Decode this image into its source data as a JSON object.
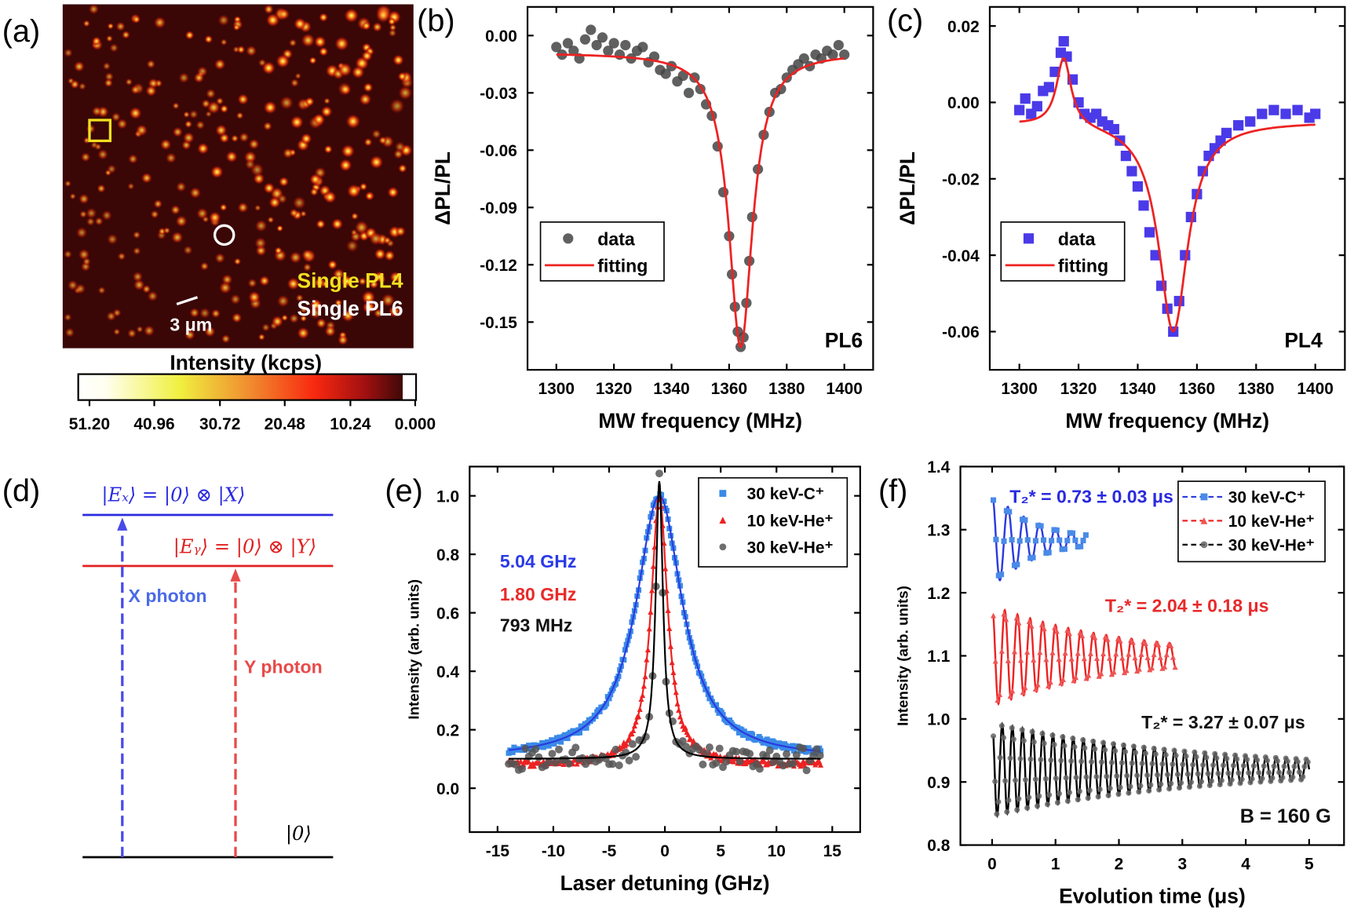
{
  "panels": {
    "a": {
      "label": "(a)",
      "legend_pl4": "Single PL4",
      "legend_pl6": "Single PL6",
      "scale_bar": "3 μm",
      "colorbar_title": "Intensity (kcps)",
      "colorbar_ticks": [
        "51.20",
        "40.96",
        "30.72",
        "20.48",
        "10.24",
        "0.000"
      ],
      "colors": {
        "pl4_marker": "#f0e020",
        "pl6_marker": "#ffffff"
      }
    },
    "b": {
      "label": "(b)"
    },
    "c": {
      "label": "(c)"
    },
    "d": {
      "label": "(d)",
      "level_ex": "|Eₓ⟩ = |0⟩ ⊗ |X⟩",
      "level_ey": "|Eᵧ⟩ = |0⟩ ⊗ |Y⟩",
      "ground": "|0⟩",
      "x_photon": "X photon",
      "y_photon": "Y photon",
      "colors": {
        "ex": "#2a2ae0",
        "ey": "#e02020",
        "ground": "#000000"
      }
    },
    "e": {
      "label": "(e)"
    },
    "f": {
      "label": "(f)"
    }
  },
  "chart_data": [
    {
      "panel": "b",
      "type": "scatter",
      "xlabel": "MW frequency (MHz)",
      "ylabel": "ΔPL/PL",
      "xlim": [
        1290,
        1410
      ],
      "ylim": [
        -0.175,
        0.015
      ],
      "xticks": [
        "1300",
        "1320",
        "1340",
        "1360",
        "1380",
        "1400"
      ],
      "yticks": [
        "0.00",
        "-0.03",
        "-0.06",
        "-0.09",
        "-0.12",
        "-0.15"
      ],
      "annotation": "PL6",
      "legend": [
        "data",
        "fitting"
      ],
      "legend_placement": "center-left",
      "series": [
        {
          "name": "data",
          "color": "#444444",
          "marker": "circle",
          "x": [
            1300,
            1302,
            1304,
            1306,
            1308,
            1310,
            1312,
            1314,
            1316,
            1318,
            1320,
            1322,
            1324,
            1326,
            1328,
            1330,
            1332,
            1334,
            1336,
            1338,
            1340,
            1342,
            1344,
            1346,
            1348,
            1350,
            1352,
            1354,
            1356,
            1358,
            1360,
            1361,
            1362,
            1363,
            1364,
            1365,
            1366,
            1367,
            1368,
            1370,
            1372,
            1374,
            1376,
            1378,
            1380,
            1382,
            1384,
            1386,
            1388,
            1390,
            1392,
            1394,
            1396,
            1398,
            1400
          ],
          "y": [
            -0.006,
            -0.01,
            -0.004,
            -0.008,
            -0.012,
            -0.002,
            0.003,
            -0.005,
            -0.001,
            -0.008,
            -0.004,
            -0.01,
            -0.005,
            -0.012,
            -0.008,
            -0.006,
            -0.014,
            -0.011,
            -0.018,
            -0.02,
            -0.016,
            -0.024,
            -0.021,
            -0.03,
            -0.022,
            -0.028,
            -0.036,
            -0.042,
            -0.058,
            -0.082,
            -0.105,
            -0.125,
            -0.142,
            -0.155,
            -0.163,
            -0.158,
            -0.14,
            -0.118,
            -0.095,
            -0.07,
            -0.052,
            -0.04,
            -0.03,
            -0.028,
            -0.022,
            -0.018,
            -0.015,
            -0.012,
            -0.016,
            -0.01,
            -0.012,
            -0.008,
            -0.01,
            -0.005,
            -0.01
          ]
        },
        {
          "name": "fitting",
          "color": "#ee2222",
          "type": "lorentzian",
          "baseline": -0.009,
          "peaks": [
            {
              "center": 1364,
              "amplitude": -0.154,
              "hwhm": 5
            }
          ]
        }
      ]
    },
    {
      "panel": "c",
      "type": "scatter",
      "xlabel": "MW frequency (MHz)",
      "ylabel": "ΔPL/PL",
      "xlim": [
        1290,
        1410
      ],
      "ylim": [
        -0.07,
        0.025
      ],
      "xticks": [
        "1300",
        "1320",
        "1340",
        "1360",
        "1380",
        "1400"
      ],
      "yticks": [
        "0.02",
        "0.00",
        "-0.02",
        "-0.04",
        "-0.06"
      ],
      "annotation": "PL4",
      "legend": [
        "data",
        "fitting"
      ],
      "legend_placement": "center-left",
      "series": [
        {
          "name": "data",
          "color": "#4a3ae8",
          "marker": "square",
          "x": [
            1300,
            1302,
            1304,
            1306,
            1308,
            1310,
            1312,
            1314,
            1315,
            1316,
            1318,
            1320,
            1322,
            1324,
            1326,
            1328,
            1330,
            1332,
            1334,
            1336,
            1338,
            1340,
            1342,
            1344,
            1346,
            1348,
            1350,
            1352,
            1354,
            1356,
            1358,
            1360,
            1362,
            1364,
            1366,
            1368,
            1370,
            1374,
            1378,
            1382,
            1386,
            1390,
            1394,
            1398,
            1400
          ],
          "y": [
            -0.002,
            0.001,
            -0.003,
            -0.001,
            0.003,
            0.004,
            0.008,
            0.013,
            0.016,
            0.012,
            0.006,
            0.0,
            -0.003,
            -0.004,
            -0.003,
            -0.005,
            -0.006,
            -0.007,
            -0.01,
            -0.014,
            -0.018,
            -0.022,
            -0.027,
            -0.034,
            -0.04,
            -0.048,
            -0.054,
            -0.06,
            -0.052,
            -0.04,
            -0.03,
            -0.024,
            -0.018,
            -0.014,
            -0.012,
            -0.01,
            -0.008,
            -0.006,
            -0.005,
            -0.003,
            -0.002,
            -0.003,
            -0.002,
            -0.004,
            -0.003
          ]
        },
        {
          "name": "fitting",
          "color": "#ee2222",
          "type": "lorentzian",
          "baseline": -0.005,
          "peaks": [
            {
              "center": 1315,
              "amplitude": 0.018,
              "hwhm": 3
            },
            {
              "center": 1352,
              "amplitude": -0.055,
              "hwhm": 6
            }
          ]
        }
      ]
    },
    {
      "panel": "e",
      "type": "scatter",
      "xlabel": "Laser detuning (GHz)",
      "ylabel": "Intensity (arb. units)",
      "xlim": [
        -17.5,
        17.5
      ],
      "ylim": [
        -0.15,
        1.1
      ],
      "xticks": [
        "-15",
        "-10",
        "-5",
        "0",
        "5",
        "10",
        "15"
      ],
      "yticks": [
        "0.0",
        "0.2",
        "0.4",
        "0.6",
        "0.8",
        "1.0"
      ],
      "legend_placement": "top-right",
      "annotations": [
        {
          "text": "5.04 GHz",
          "color": "#2a3ae8"
        },
        {
          "text": "1.80 GHz",
          "color": "#e82a2a"
        },
        {
          "text": "793 MHz",
          "color": "#111111"
        }
      ],
      "series": [
        {
          "name": "30 keV-C⁺",
          "color": "#3a8ae8",
          "line_color": "#2a3ae0",
          "marker": "square",
          "center": -0.5,
          "fwhm": 5.04,
          "peak": 1.0,
          "baseline": 0.1
        },
        {
          "name": "10 keV-He⁺",
          "color": "#ee2222",
          "line_color": "#ee2222",
          "marker": "triangle",
          "center": -0.5,
          "fwhm": 1.8,
          "peak": 1.0,
          "baseline": 0.08
        },
        {
          "name": "30 keV-He⁺",
          "color": "#555555",
          "line_color": "#000000",
          "marker": "circle",
          "center": -0.5,
          "fwhm": 0.793,
          "peak": 1.05,
          "baseline": 0.1
        }
      ]
    },
    {
      "panel": "f",
      "type": "line",
      "xlabel": "Evolution time (μs)",
      "ylabel": "Intensity (arb. units)",
      "xlim": [
        -0.5,
        5.55
      ],
      "ylim": [
        0.8,
        1.4
      ],
      "xticks": [
        "0",
        "1",
        "2",
        "3",
        "4",
        "5"
      ],
      "yticks": [
        "0.8",
        "0.9",
        "1.0",
        "1.1",
        "1.2",
        "1.3",
        "1.4"
      ],
      "legend_placement": "top-right",
      "annotations": [
        {
          "text": "T₂* = 0.73 ± 0.03 μs",
          "color": "#2a2ae0"
        },
        {
          "text": "T₂* = 2.04 ± 0.18 μs",
          "color": "#e82a2a"
        },
        {
          "text": "T₂* = 3.27 ± 0.07 μs",
          "color": "#111111"
        },
        {
          "text": "B = 160 G",
          "color": "#111111"
        }
      ],
      "series": [
        {
          "name": "30 keV-C⁺",
          "color": "#4a8ae8",
          "line_color": "#2a3ae0",
          "marker": "square",
          "offset": 1.283,
          "amplitude": 0.075,
          "T2star": 0.73,
          "period": 0.25,
          "tmax": 1.5
        },
        {
          "name": "10 keV-He⁺",
          "color": "#ee5555",
          "line_color": "#ee2222",
          "marker": "triangle",
          "offset": 1.1,
          "amplitude": 0.08,
          "T2star": 2.04,
          "period": 0.2,
          "tmax": 2.9
        },
        {
          "name": "30 keV-He⁺",
          "color": "#666666",
          "line_color": "#000000",
          "marker": "circle",
          "offset": 0.92,
          "amplitude": 0.075,
          "T2star": 3.27,
          "period": 0.16,
          "tmax": 5.0
        }
      ]
    }
  ]
}
